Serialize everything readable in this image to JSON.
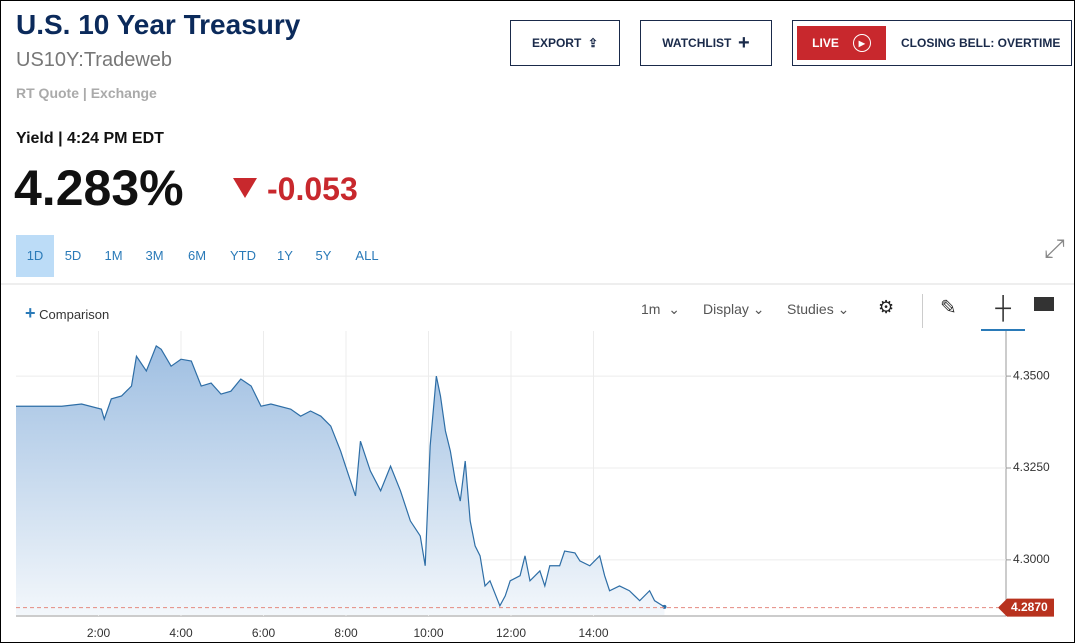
{
  "header": {
    "title": "U.S. 10 Year Treasury",
    "symbol": "US10Y:Tradeweb",
    "source": "RT Quote | Exchange"
  },
  "quote": {
    "label": "Yield | 4:24 PM EDT",
    "price": "4.283%",
    "change": "-0.053"
  },
  "buttons": {
    "export": "EXPORT",
    "watchlist": "WATCHLIST",
    "live": "LIVE",
    "show": "CLOSING BELL: OVERTIME"
  },
  "ranges": [
    "1D",
    "5D",
    "1M",
    "3M",
    "6M",
    "YTD",
    "1Y",
    "5Y",
    "ALL"
  ],
  "toolbar": {
    "comparison": "Comparison",
    "interval": "1m",
    "display": "Display",
    "studies": "Studies"
  },
  "chart_data": {
    "type": "area",
    "color": "#2e6ea6",
    "grid": true,
    "x": [
      0,
      1.11,
      1.59,
      2.07,
      2.14,
      2.31,
      2.56,
      2.8,
      2.92,
      3.16,
      3.4,
      3.52,
      3.76,
      4.0,
      4.25,
      4.49,
      4.73,
      4.97,
      5.21,
      5.45,
      5.7,
      5.94,
      6.18,
      6.66,
      6.9,
      7.14,
      7.39,
      7.63,
      7.87,
      7.99,
      8.23,
      8.35,
      8.59,
      8.84,
      9.08,
      9.32,
      9.56,
      9.8,
      9.92,
      10.04,
      10.19,
      10.29,
      10.41,
      10.53,
      10.65,
      10.77,
      10.89,
      11.01,
      11.13,
      11.25,
      11.37,
      11.49,
      11.73,
      11.86,
      11.98,
      12.22,
      12.34,
      12.46,
      12.7,
      12.82,
      12.94,
      13.18,
      13.3,
      13.55,
      13.67,
      13.91,
      14.15,
      14.27,
      14.39,
      14.63,
      14.87,
      15.12,
      15.36,
      15.48,
      15.72
    ],
    "values": [
      4.3418,
      4.3418,
      4.3424,
      4.341,
      4.3383,
      4.3438,
      4.3446,
      4.3473,
      4.3554,
      4.3514,
      4.3582,
      4.3573,
      4.3527,
      4.3546,
      4.3541,
      4.3473,
      4.3481,
      4.3451,
      4.3459,
      4.3492,
      4.3473,
      4.3418,
      4.3424,
      4.341,
      4.3391,
      4.3405,
      4.3391,
      4.3364,
      4.3296,
      4.3255,
      4.3174,
      4.3323,
      4.3242,
      4.3188,
      4.3255,
      4.3188,
      4.3106,
      4.3065,
      4.2984,
      4.331,
      4.35,
      4.3446,
      4.3351,
      4.3296,
      4.3215,
      4.316,
      4.3269,
      4.3106,
      4.3038,
      4.3011,
      4.2929,
      4.2943,
      4.2875,
      4.2902,
      4.2943,
      4.2957,
      4.3011,
      4.2943,
      4.297,
      4.2929,
      4.2984,
      4.2984,
      4.3024,
      4.3019,
      4.2997,
      4.2984,
      4.3011,
      4.2957,
      4.2916,
      4.2929,
      4.2916,
      4.2889,
      4.2916,
      4.2889,
      4.2872
    ],
    "xlim": [
      0,
      24
    ],
    "ylim": [
      4.285,
      4.362
    ],
    "xticks": [
      {
        "value": 2,
        "label": "2:00"
      },
      {
        "value": 4,
        "label": "4:00"
      },
      {
        "value": 6,
        "label": "6:00"
      },
      {
        "value": 8,
        "label": "8:00"
      },
      {
        "value": 10,
        "label": "10:00"
      },
      {
        "value": 12,
        "label": "12:00"
      },
      {
        "value": 14,
        "label": "14:00"
      }
    ],
    "yticks": [
      {
        "value": 4.3,
        "label": "4.3000"
      },
      {
        "value": 4.325,
        "label": "4.3250"
      },
      {
        "value": 4.35,
        "label": "4.3500"
      }
    ],
    "last_price": {
      "value": 4.287,
      "label": "4.2870"
    }
  }
}
